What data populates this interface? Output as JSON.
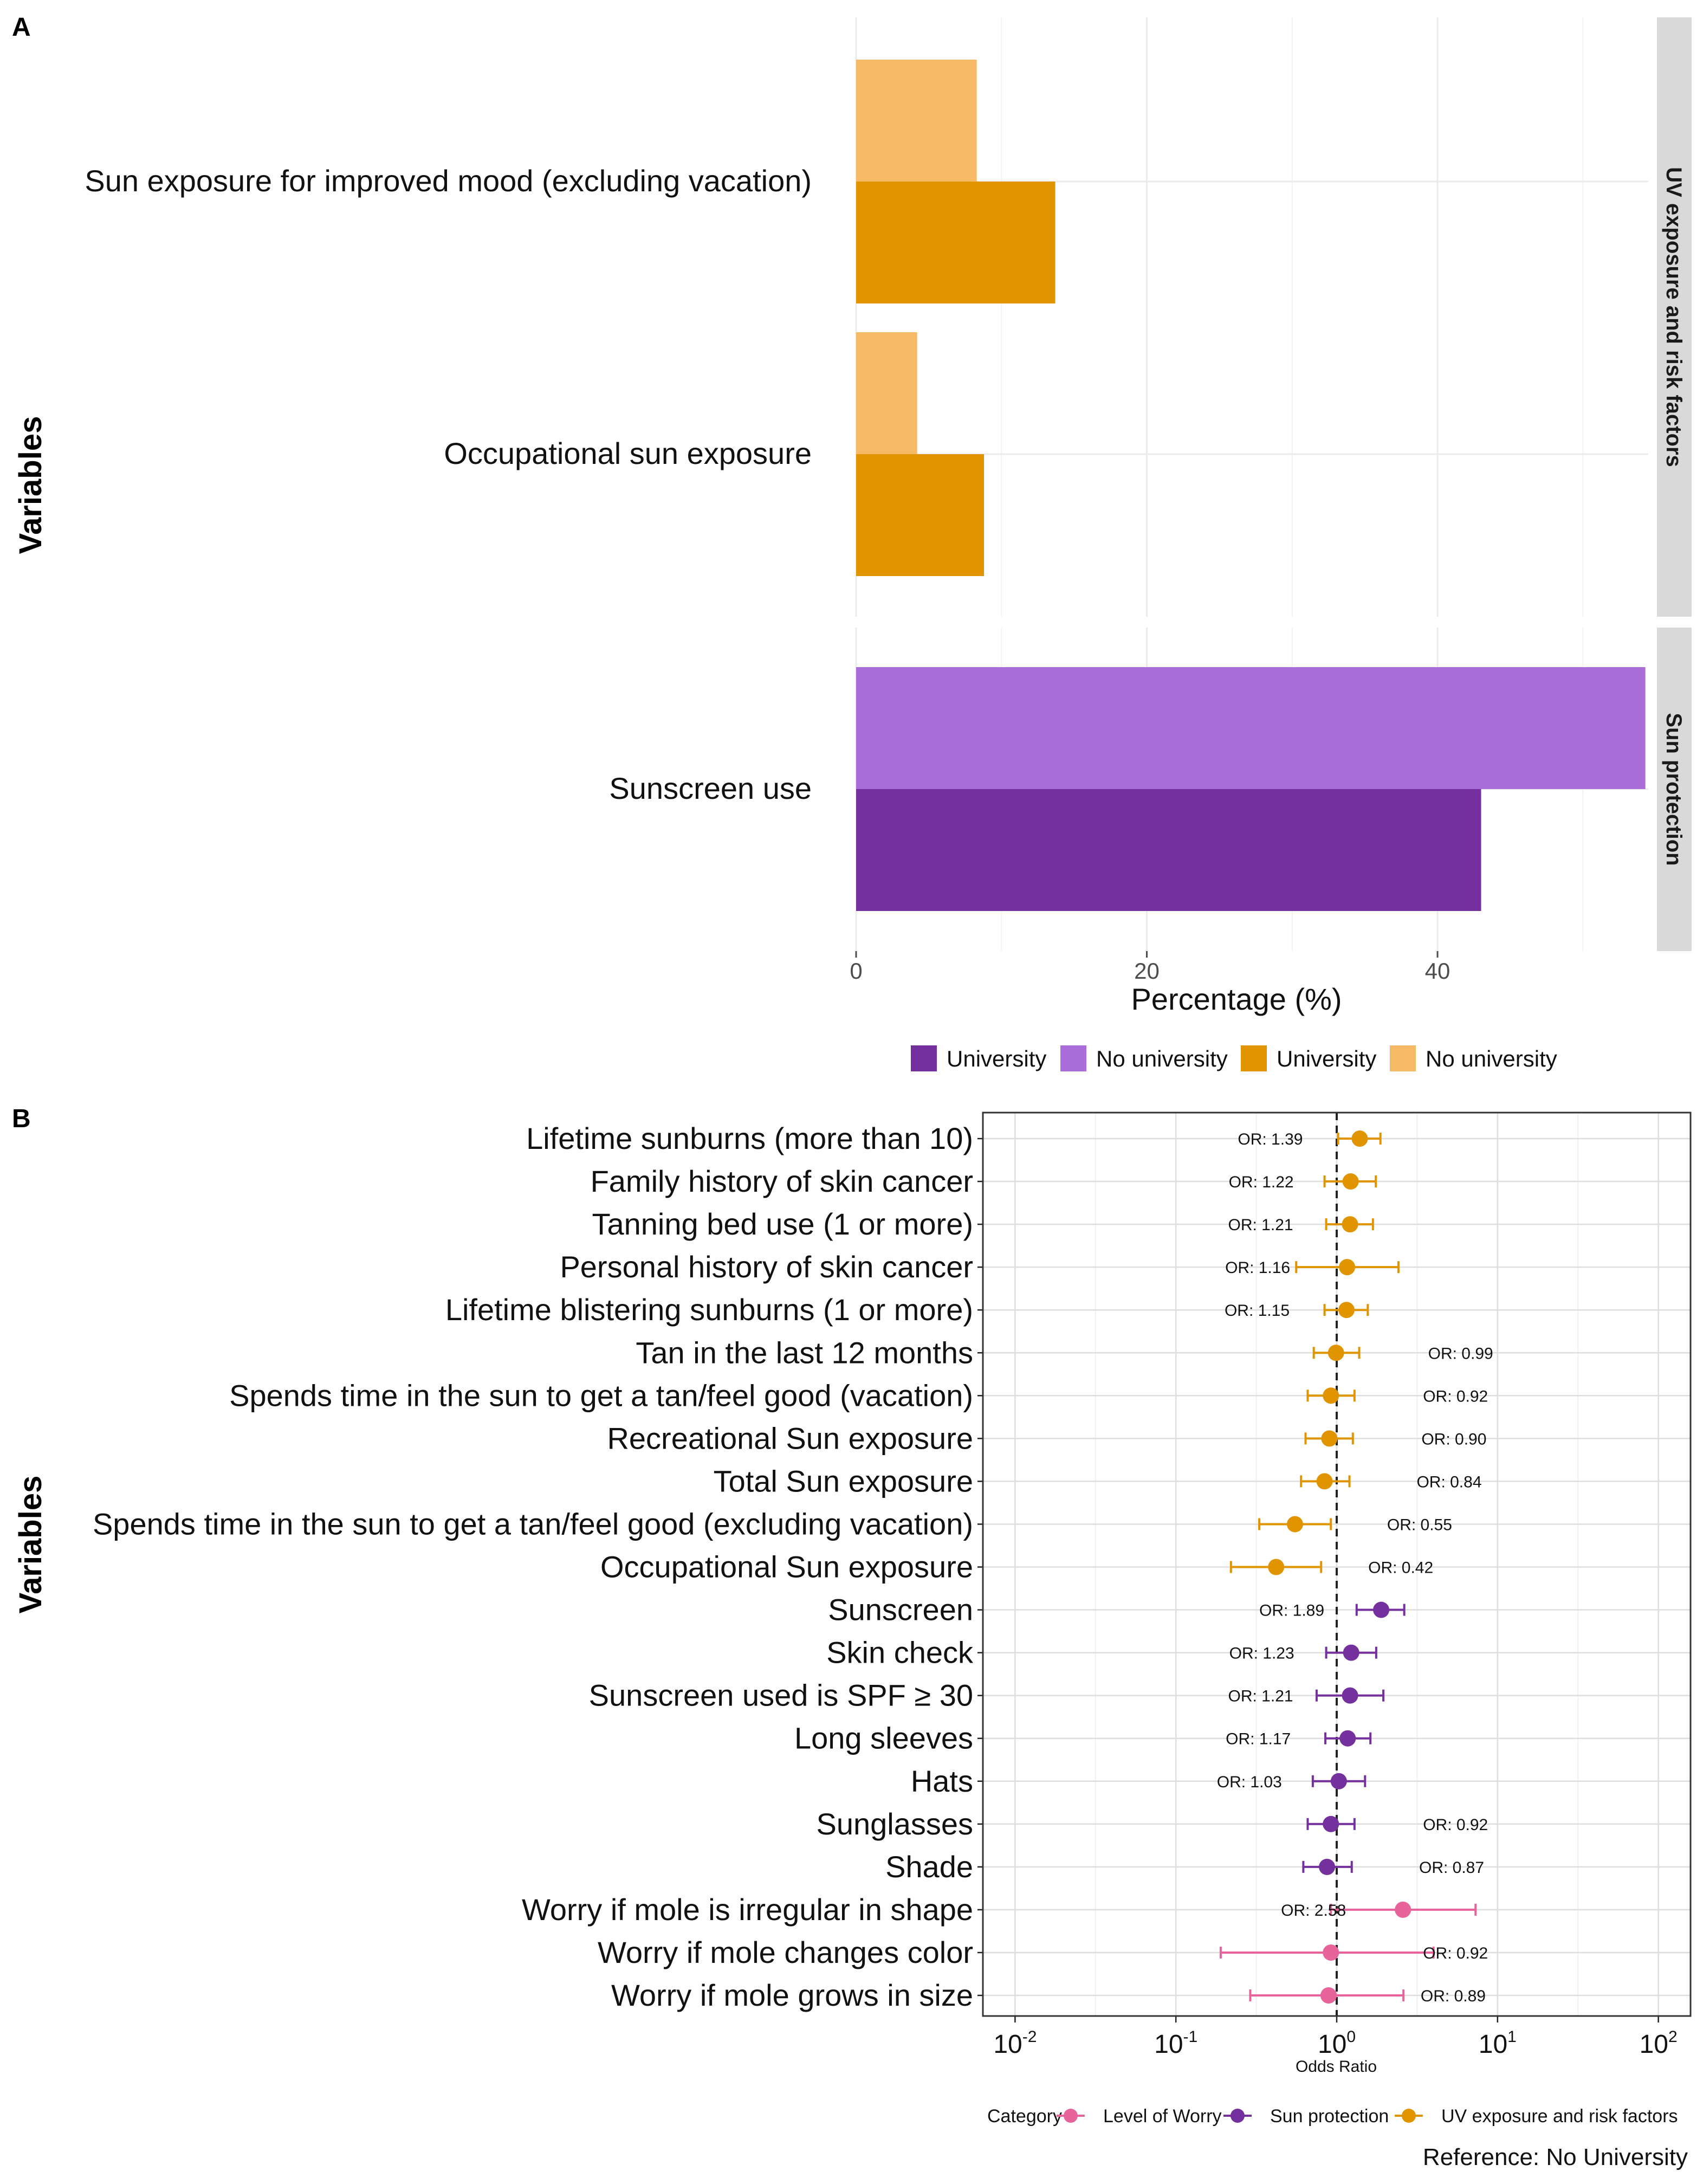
{
  "panel_a": {
    "letter": "A",
    "y_title": "Variables",
    "chart_data": {
      "type": "bar",
      "orientation": "horizontal",
      "xlabel": "Percentage (%)",
      "ylabel": "Variables",
      "xlim": [
        0,
        54.5
      ],
      "x_ticks": [
        0,
        20,
        40
      ],
      "x_tick_labels": [
        "0",
        "20",
        "40"
      ],
      "facets": [
        {
          "strip": "UV exposure and risk factors",
          "categories": [
            "Sun exposure for improved mood (excluding vacation)",
            "Occupational sun exposure"
          ],
          "series": [
            {
              "name": "No university",
              "color": "#f6b965",
              "values": [
                8.3,
                4.2
              ]
            },
            {
              "name": "University",
              "color": "#e09500",
              "values": [
                13.7,
                8.8
              ]
            }
          ]
        },
        {
          "strip": "Sun protection",
          "categories": [
            "Sunscreen use"
          ],
          "series": [
            {
              "name": "No university",
              "color": "#a96ed9",
              "values": [
                54.3
              ]
            },
            {
              "name": "University",
              "color": "#74309c",
              "values": [
                43.0
              ]
            }
          ]
        }
      ],
      "legend": [
        {
          "label": "University",
          "color": "#74309c"
        },
        {
          "label": "No university",
          "color": "#a96ed9"
        },
        {
          "label": "University",
          "color": "#e09500"
        },
        {
          "label": "No university",
          "color": "#f6b965"
        }
      ],
      "legend_position": "bottom",
      "grid": true
    }
  },
  "panel_b": {
    "letter": "B",
    "y_title": "Variables",
    "chart_data": {
      "type": "scatter",
      "subtype": "forest",
      "xscale": "log10",
      "xlim_log10": [
        -2.2,
        2.2
      ],
      "xlabel": "Odds Ratio",
      "ylabel": "Variables",
      "reference_line": 1,
      "x_tick_labels": [
        {
          "base": "10",
          "exp": "-2",
          "value": 0.01
        },
        {
          "base": "10",
          "exp": "-1",
          "value": 0.1
        },
        {
          "base": "10",
          "exp": "0",
          "value": 1
        },
        {
          "base": "10",
          "exp": "1",
          "value": 10
        },
        {
          "base": "10",
          "exp": "2",
          "value": 100
        }
      ],
      "category_colors": {
        "Level of Worry": "#e8639c",
        "Sun protection": "#74309c",
        "UV exposure and risk factors": "#e09500"
      },
      "rows": [
        {
          "label": "Lifetime sunburns (more than 10)",
          "or": 1.39,
          "lo": 1.02,
          "hi": 1.87,
          "category": "UV exposure and risk factors",
          "or_label": "OR: 1.39",
          "label_side": "left"
        },
        {
          "label": "Family history of skin cancer",
          "or": 1.22,
          "lo": 0.84,
          "hi": 1.75,
          "category": "UV exposure and risk factors",
          "or_label": "OR: 1.22",
          "label_side": "left"
        },
        {
          "label": "Tanning bed use (1 or more)",
          "or": 1.21,
          "lo": 0.86,
          "hi": 1.68,
          "category": "UV exposure and risk factors",
          "or_label": "OR: 1.21",
          "label_side": "left"
        },
        {
          "label": "Personal history of skin cancer",
          "or": 1.16,
          "lo": 0.56,
          "hi": 2.42,
          "category": "UV exposure and risk factors",
          "or_label": "OR: 1.16",
          "label_side": "left"
        },
        {
          "label": "Lifetime blistering sunburns (1 or more)",
          "or": 1.15,
          "lo": 0.84,
          "hi": 1.56,
          "category": "UV exposure and risk factors",
          "or_label": "OR: 1.15",
          "label_side": "left"
        },
        {
          "label": "Tan in the last 12 months",
          "or": 0.99,
          "lo": 0.72,
          "hi": 1.38,
          "category": "UV exposure and risk factors",
          "or_label": "OR: 0.99",
          "label_side": "right"
        },
        {
          "label": "Spends time in the sun to get a tan/feel good (vacation)",
          "or": 0.92,
          "lo": 0.66,
          "hi": 1.29,
          "category": "UV exposure and risk factors",
          "or_label": "OR: 0.92",
          "label_side": "right"
        },
        {
          "label": "Recreational Sun exposure",
          "or": 0.9,
          "lo": 0.64,
          "hi": 1.26,
          "category": "UV exposure and risk factors",
          "or_label": "OR: 0.90",
          "label_side": "right"
        },
        {
          "label": "Total Sun exposure",
          "or": 0.84,
          "lo": 0.6,
          "hi": 1.2,
          "category": "UV exposure and risk factors",
          "or_label": "OR: 0.84",
          "label_side": "right"
        },
        {
          "label": "Spends time in the sun to get a tan/feel good (excluding vacation)",
          "or": 0.55,
          "lo": 0.33,
          "hi": 0.92,
          "category": "UV exposure and risk factors",
          "or_label": "OR: 0.55",
          "label_side": "right"
        },
        {
          "label": "Occupational Sun exposure",
          "or": 0.42,
          "lo": 0.22,
          "hi": 0.8,
          "category": "UV exposure and risk factors",
          "or_label": "OR: 0.42",
          "label_side": "right"
        },
        {
          "label": "Sunscreen",
          "or": 1.89,
          "lo": 1.33,
          "hi": 2.63,
          "category": "Sun protection",
          "or_label": "OR: 1.89",
          "label_side": "left"
        },
        {
          "label": "Skin check",
          "or": 1.23,
          "lo": 0.86,
          "hi": 1.76,
          "category": "Sun protection",
          "or_label": "OR: 1.23",
          "label_side": "left"
        },
        {
          "label": "Sunscreen used is SPF ≥ 30",
          "or": 1.21,
          "lo": 0.75,
          "hi": 1.95,
          "category": "Sun protection",
          "or_label": "OR: 1.21",
          "label_side": "left"
        },
        {
          "label": "Long sleeves",
          "or": 1.17,
          "lo": 0.85,
          "hi": 1.62,
          "category": "Sun protection",
          "or_label": "OR: 1.17",
          "label_side": "left"
        },
        {
          "label": "Hats",
          "or": 1.03,
          "lo": 0.71,
          "hi": 1.5,
          "category": "Sun protection",
          "or_label": "OR: 1.03",
          "label_side": "left"
        },
        {
          "label": "Sunglasses",
          "or": 0.92,
          "lo": 0.66,
          "hi": 1.29,
          "category": "Sun protection",
          "or_label": "OR: 0.92",
          "label_side": "right"
        },
        {
          "label": "Shade",
          "or": 0.87,
          "lo": 0.62,
          "hi": 1.24,
          "category": "Sun protection",
          "or_label": "OR: 0.87",
          "label_side": "right"
        },
        {
          "label": "Worry if mole is irregular in shape",
          "or": 2.58,
          "lo": 0.92,
          "hi": 7.3,
          "category": "Level of Worry",
          "or_label": "OR: 2.58",
          "label_side": "left"
        },
        {
          "label": "Worry if mole changes color",
          "or": 0.92,
          "lo": 0.19,
          "hi": 4.0,
          "category": "Level of Worry",
          "or_label": "OR: 0.92",
          "label_side": "right"
        },
        {
          "label": "Worry if mole grows in size",
          "or": 0.89,
          "lo": 0.29,
          "hi": 2.6,
          "category": "Level of Worry",
          "or_label": "OR: 0.89",
          "label_side": "right"
        }
      ],
      "legend_title": "Category",
      "legend": [
        {
          "label": "Level of Worry",
          "color": "#e8639c"
        },
        {
          "label": "Sun protection",
          "color": "#74309c"
        },
        {
          "label": "UV exposure and risk factors",
          "color": "#e09500"
        }
      ],
      "legend_position": "bottom",
      "caption": "Reference: No University"
    }
  }
}
